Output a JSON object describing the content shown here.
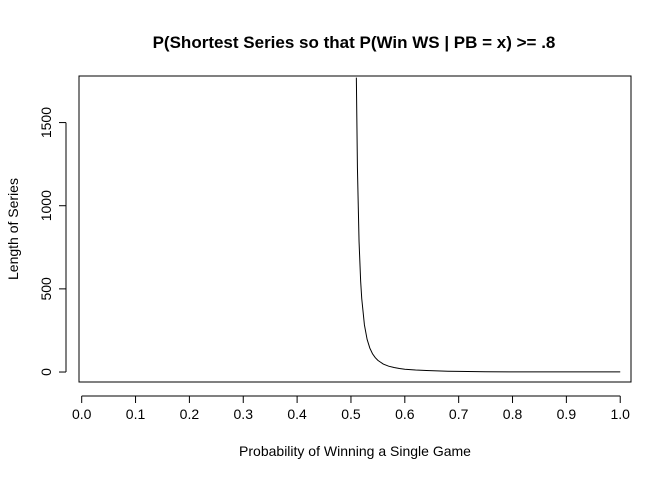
{
  "chart_data": {
    "type": "line",
    "title": "P(Shortest Series so that P(Win WS | PB = x) >= .8",
    "xlabel": "Probability of Winning a Single Game",
    "ylabel": "Length of Series",
    "xlim": [
      -0.005,
      1.02
    ],
    "ylim": [
      -60,
      1780
    ],
    "x_ticks": [
      0.0,
      0.1,
      0.2,
      0.3,
      0.4,
      0.5,
      0.6,
      0.7,
      0.8,
      0.9,
      1.0
    ],
    "x_tick_labels": [
      "0.0",
      "0.1",
      "0.2",
      "0.3",
      "0.4",
      "0.5",
      "0.6",
      "0.7",
      "0.8",
      "0.9",
      "1.0"
    ],
    "y_ticks": [
      0,
      500,
      1000,
      1500
    ],
    "y_tick_labels": [
      "0",
      "500",
      "1000",
      "1500"
    ],
    "grid": false,
    "legend": "none",
    "line_color": "#000000",
    "series": [
      {
        "x": [
          0.51,
          0.512,
          0.515,
          0.518,
          0.52,
          0.525,
          0.53,
          0.535,
          0.54,
          0.545,
          0.55,
          0.56,
          0.57,
          0.58,
          0.59,
          0.6,
          0.62,
          0.64,
          0.66,
          0.68,
          0.7,
          0.75,
          0.8,
          0.85,
          0.9,
          0.95,
          1.0
        ],
        "y": [
          1770,
          1229,
          786,
          546,
          442,
          283,
          196,
          144,
          110,
          87,
          70,
          48,
          35,
          27,
          21,
          17,
          12,
          9,
          7,
          5,
          4,
          2,
          1,
          1,
          1,
          1,
          1
        ]
      }
    ]
  }
}
